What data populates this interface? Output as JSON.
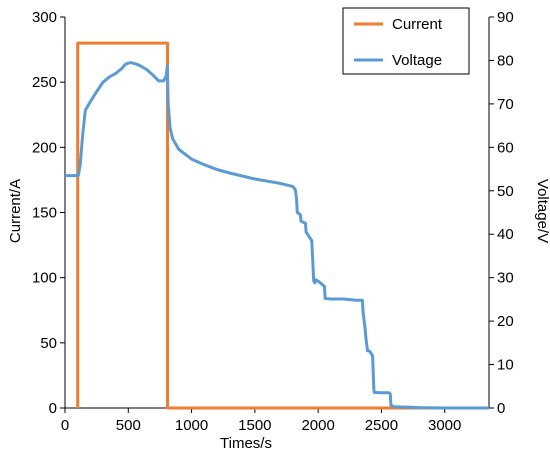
{
  "chart_data": {
    "type": "line",
    "xlabel": "Times/s",
    "ylabel_left": "Current/A",
    "ylabel_right": "Voltage/V",
    "xlim": [
      0,
      3350
    ],
    "ylim_left": [
      0,
      300
    ],
    "ylim_right": [
      0,
      90
    ],
    "x_ticks": [
      0,
      500,
      1000,
      1500,
      2000,
      2500,
      3000
    ],
    "y_left_ticks": [
      0,
      50,
      100,
      150,
      200,
      250,
      300
    ],
    "y_right_ticks": [
      0,
      10,
      20,
      30,
      40,
      50,
      60,
      70,
      80,
      90
    ],
    "grid": false,
    "legend_position": "top-right",
    "series": [
      {
        "name": "Current",
        "axis": "left",
        "color": "#ED7D31",
        "x": [
          100,
          100,
          810,
          810,
          3350
        ],
        "y": [
          0,
          280,
          280,
          0,
          0
        ]
      },
      {
        "name": "Voltage",
        "axis": "right",
        "color": "#5B9BD5",
        "x": [
          0,
          105,
          120,
          140,
          160,
          200,
          250,
          300,
          350,
          400,
          450,
          480,
          520,
          560,
          600,
          650,
          700,
          740,
          780,
          800,
          808,
          815,
          830,
          850,
          900,
          1000,
          1100,
          1200,
          1300,
          1400,
          1500,
          1600,
          1700,
          1800,
          1820,
          1830,
          1835,
          1860,
          1865,
          1900,
          1905,
          1950,
          1965,
          1975,
          1980,
          2000,
          2030,
          2050,
          2055,
          2100,
          2200,
          2300,
          2350,
          2355,
          2370,
          2380,
          2390,
          2410,
          2420,
          2430,
          2440,
          2443,
          2500,
          2560,
          2570,
          2575,
          2600,
          2700,
          2800,
          3000,
          3200,
          3350
        ],
        "y": [
          53.5,
          53.5,
          56,
          63,
          68.5,
          70.5,
          72.8,
          75,
          76.2,
          77,
          78.2,
          79.2,
          79.5,
          79.2,
          78.7,
          77.8,
          76.5,
          75.3,
          75.3,
          76.5,
          78.8,
          70,
          64.5,
          62,
          59.5,
          57.3,
          56,
          54.9,
          54.1,
          53.4,
          52.7,
          52.2,
          51.7,
          51,
          50.2,
          48,
          45,
          44.5,
          43,
          42.5,
          40.5,
          38.5,
          29.2,
          28.8,
          29.5,
          29.2,
          28.5,
          28,
          25.2,
          25.1,
          25.1,
          24.8,
          24.8,
          22,
          18.5,
          15.5,
          13.2,
          13,
          12.5,
          12,
          4.5,
          3.6,
          3.5,
          3.5,
          3.2,
          0.6,
          0.3,
          0.2,
          0.1,
          0,
          0,
          0
        ]
      }
    ]
  }
}
